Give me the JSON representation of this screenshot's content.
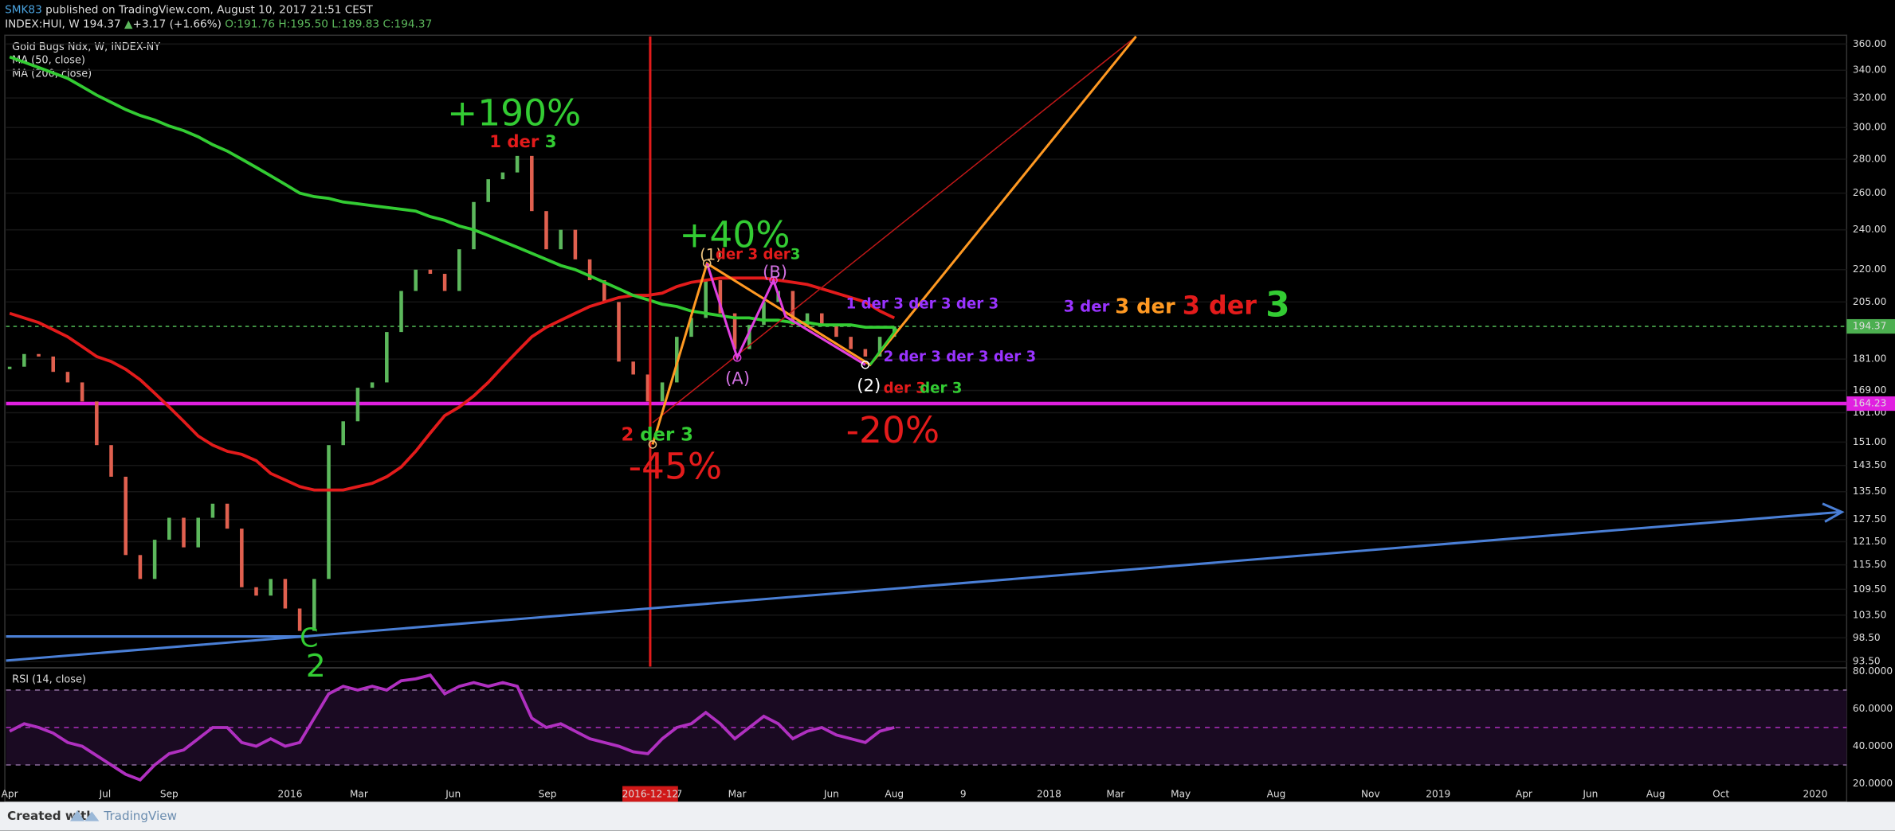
{
  "header": {
    "author": "SMK83",
    "byline": "published on TradingView.com, August 10, 2017 21:51 CEST",
    "symbol": "INDEX:HUI, W",
    "last": "194.37",
    "arrow": "▲",
    "change": "+3.17 (+1.66%)",
    "ohlc": [
      "O:191.76",
      "H:195.50",
      "L:189.83",
      "C:194.37"
    ]
  },
  "legend": [
    "Gold Bugs Ndx, W, INDEX-NY",
    "MA (50, close)",
    "MA (200, close)"
  ],
  "footer": {
    "created": "Created with",
    "brand": "TradingView"
  },
  "chart_data": [
    {
      "type": "bar",
      "log_scale": true,
      "ylim": [
        92.5,
        366
      ],
      "yticks": [
        {
          "value": 360,
          "label": "360.00"
        },
        {
          "value": 340,
          "label": "340.00"
        },
        {
          "value": 320,
          "label": "320.00"
        },
        {
          "value": 300,
          "label": "300.00"
        },
        {
          "value": 280,
          "label": "280.00"
        },
        {
          "value": 260,
          "label": "260.00"
        },
        {
          "value": 240,
          "label": "240.00"
        },
        {
          "value": 220,
          "label": "220.00"
        },
        {
          "value": 205,
          "label": "205.00"
        },
        {
          "value": 181,
          "label": "181.00"
        },
        {
          "value": 169,
          "label": "169.00"
        },
        {
          "value": 161,
          "label": "161.00"
        },
        {
          "value": 151,
          "label": "151.00"
        },
        {
          "value": 143.5,
          "label": "143.50"
        },
        {
          "value": 135.5,
          "label": "135.50"
        },
        {
          "value": 127.5,
          "label": "127.50"
        },
        {
          "value": 121.5,
          "label": "121.50"
        },
        {
          "value": 115.5,
          "label": "115.50"
        },
        {
          "value": 109.5,
          "label": "109.50"
        },
        {
          "value": 103.5,
          "label": "103.50"
        },
        {
          "value": 98.5,
          "label": "98.50"
        },
        {
          "value": 93.5,
          "label": "93.50"
        }
      ],
      "xticks": [
        "Apr",
        "Jul",
        "Sep",
        "2016",
        "Mar",
        "Jun",
        "Sep",
        "7",
        "Mar",
        "Jun",
        "Aug",
        "9",
        "2018",
        "Mar",
        "May",
        "Aug",
        "Nov",
        "2019",
        "Apr",
        "Jun",
        "Aug",
        "Oct",
        "2020"
      ],
      "crosshair_date": "2016-12-12",
      "last_price": 194.37,
      "level": {
        "value": 164.23,
        "label": "164.23"
      },
      "up_color": "#5cb85c",
      "down_color": "#e0604f",
      "series": [
        {
          "name": "HUI",
          "values": [
            178,
            183,
            182,
            176,
            172,
            165,
            150,
            140,
            118,
            112,
            122,
            128,
            120,
            128,
            132,
            125,
            110,
            108,
            112,
            105,
            100,
            112,
            150,
            158,
            170,
            172,
            192,
            210,
            220,
            218,
            210,
            230,
            255,
            268,
            272,
            282,
            250,
            230,
            240,
            225,
            215,
            205,
            180,
            175,
            165,
            172,
            190,
            198,
            215,
            200,
            185,
            195,
            205,
            210,
            195,
            200,
            195,
            190,
            185,
            182,
            190,
            194.37
          ]
        },
        {
          "name": "MA (50, close)",
          "color": "#e31b1b",
          "values": [
            200,
            198,
            196,
            193,
            190,
            186,
            182,
            180,
            177,
            173,
            168,
            163,
            158,
            153,
            150,
            148,
            147,
            145,
            141,
            139,
            137,
            136,
            136,
            136,
            137,
            138,
            140,
            143,
            148,
            154,
            160,
            163,
            167,
            172,
            178,
            184,
            190,
            194,
            197,
            200,
            203,
            205,
            207,
            208,
            208,
            209,
            212,
            214,
            215,
            216,
            216,
            216,
            216,
            215,
            214,
            213,
            211,
            209,
            207,
            205,
            201,
            198
          ]
        },
        {
          "name": "MA (200, close)",
          "color": "#33cc33",
          "values": [
            350,
            346,
            342,
            338,
            334,
            328,
            322,
            317,
            312,
            308,
            305,
            301,
            298,
            294,
            289,
            285,
            280,
            275,
            270,
            265,
            260,
            258,
            257,
            255,
            254,
            253,
            252,
            251,
            250,
            247,
            245,
            242,
            240,
            237,
            234,
            231,
            228,
            225,
            222,
            220,
            217,
            214,
            211,
            208,
            206,
            204,
            203,
            201,
            200,
            199,
            198,
            198,
            197,
            197,
            196,
            196,
            195,
            195,
            195,
            194,
            194,
            194
          ]
        }
      ],
      "annotations": [
        {
          "parts": [
            {
              "text": "+190%",
              "color": "#33cc33"
            }
          ]
        },
        {
          "parts": [
            {
              "text": "1 der",
              "color": "#e31b1b"
            },
            {
              "text": " 3",
              "color": "#33cc33"
            }
          ]
        },
        {
          "parts": [
            {
              "text": "+40%",
              "color": "#33cc33"
            }
          ]
        },
        {
          "parts": [
            {
              "text": "(1)",
              "color": "#e8c07d"
            }
          ]
        },
        {
          "parts": [
            {
              "text": "der 3 der",
              "color": "#e31b1b"
            },
            {
              "text": "3",
              "color": "#33cc33"
            }
          ]
        },
        {
          "parts": [
            {
              "text": "(B)",
              "color": "#d070e0"
            }
          ]
        },
        {
          "parts": [
            {
              "text": "(A)",
              "color": "#d070e0"
            }
          ]
        },
        {
          "parts": [
            {
              "text": "1 der 3 der 3 der 3",
              "color": "#9933ff"
            }
          ]
        },
        {
          "parts": [
            {
              "text": "2 der 3 der 3 der 3",
              "color": "#9933ff"
            }
          ]
        },
        {
          "parts": [
            {
              "text": "(2)",
              "color": "#ffffff"
            }
          ]
        },
        {
          "parts": [
            {
              "text": "der 3",
              "color": "#e31b1b"
            }
          ]
        },
        {
          "parts": [
            {
              "text": "der 3",
              "color": "#33cc33"
            }
          ]
        },
        {
          "parts": [
            {
              "text": "2",
              "color": "#e31b1b"
            },
            {
              "text": " der 3",
              "color": "#33cc33"
            }
          ]
        },
        {
          "parts": [
            {
              "text": "-45%",
              "color": "#e31b1b"
            }
          ]
        },
        {
          "parts": [
            {
              "text": "-20%",
              "color": "#e31b1b"
            }
          ]
        },
        {
          "parts": [
            {
              "text": "3 der ",
              "color": "#9933ff"
            },
            {
              "text": "3 der ",
              "color": "#ff9922"
            },
            {
              "text": "3 der ",
              "color": "#e31b1b"
            },
            {
              "text": "3",
              "color": "#33cc33"
            }
          ]
        },
        {
          "parts": [
            {
              "text": "C",
              "color": "#33cc33"
            }
          ]
        },
        {
          "parts": [
            {
              "text": "2",
              "color": "#33cc33"
            }
          ]
        }
      ]
    },
    {
      "type": "line",
      "title": "RSI (14, close)",
      "color": "#b030c0",
      "ylim": [
        10.3,
        81.9
      ],
      "yticks": [
        {
          "value": 80,
          "label": "80.0000"
        },
        {
          "value": 60,
          "label": "60.0000"
        },
        {
          "value": 40,
          "label": "40.0000"
        },
        {
          "value": 20,
          "label": "20.0000"
        }
      ],
      "bands": [
        30,
        70
      ],
      "midline": 50,
      "values": [
        48,
        52,
        50,
        47,
        42,
        40,
        35,
        30,
        25,
        22,
        30,
        36,
        38,
        44,
        50,
        50,
        42,
        40,
        44,
        40,
        42,
        55,
        68,
        72,
        70,
        72,
        70,
        75,
        76,
        78,
        68,
        72,
        74,
        72,
        74,
        72,
        55,
        50,
        52,
        48,
        44,
        42,
        40,
        37,
        36,
        44,
        50,
        52,
        58,
        52,
        44,
        50,
        56,
        52,
        44,
        48,
        50,
        46,
        44,
        42,
        48,
        50
      ]
    }
  ]
}
